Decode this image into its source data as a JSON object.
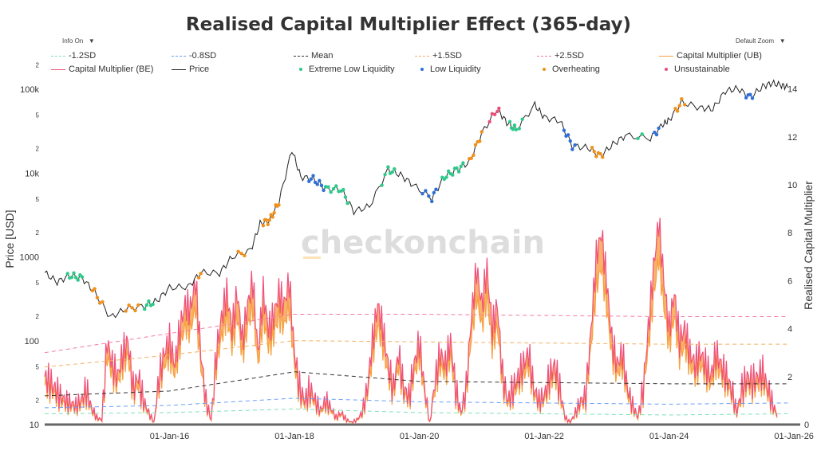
{
  "chart_data": {
    "type": "line",
    "title": "Realised Capital Multiplier Effect (365-day)",
    "controls": {
      "info": "Info On",
      "zoom": "Default Zoom",
      "caret": "▼"
    },
    "watermark": "checkonchain",
    "ylabel_left": "Price [USD]",
    "ylabel_right": "Realised Capital Multiplier",
    "left_axis": {
      "scale": "log",
      "range": [
        10,
        150000
      ],
      "ticks": [
        {
          "v": 10,
          "l": "10"
        },
        {
          "v": 20,
          "l": "2"
        },
        {
          "v": 50,
          "l": "5"
        },
        {
          "v": 100,
          "l": "100"
        },
        {
          "v": 200,
          "l": "2"
        },
        {
          "v": 500,
          "l": "5"
        },
        {
          "v": 1000,
          "l": "1000"
        },
        {
          "v": 2000,
          "l": "2"
        },
        {
          "v": 5000,
          "l": "5"
        },
        {
          "v": 10000,
          "l": "10k"
        },
        {
          "v": 20000,
          "l": "2"
        },
        {
          "v": 50000,
          "l": "5"
        },
        {
          "v": 100000,
          "l": "100k"
        },
        {
          "v": 200000,
          "l": "2"
        }
      ]
    },
    "right_axis": {
      "scale": "linear",
      "range": [
        0,
        15
      ],
      "ticks": [
        "0",
        "2",
        "4",
        "6",
        "8",
        "10",
        "12",
        "14"
      ]
    },
    "x_axis": {
      "range": [
        2014.0,
        2026.1
      ],
      "ticks": [
        {
          "v": 2016,
          "l": "01-Jan-16"
        },
        {
          "v": 2018,
          "l": "01-Jan-18"
        },
        {
          "v": 2020,
          "l": "01-Jan-20"
        },
        {
          "v": 2022,
          "l": "01-Jan-22"
        },
        {
          "v": 2024,
          "l": "01-Jan-24"
        },
        {
          "v": 2026,
          "l": "01-Jan-26"
        }
      ]
    },
    "grid": false,
    "legend_position": "top",
    "legend": [
      {
        "name": "-1.2SD",
        "kind": "dash",
        "color": "#7fe0b8"
      },
      {
        "name": "-0.8SD",
        "kind": "dash",
        "color": "#6a9ef5"
      },
      {
        "name": "Mean",
        "kind": "dash",
        "color": "#333333"
      },
      {
        "name": "+1.5SD",
        "kind": "dash",
        "color": "#f5b060"
      },
      {
        "name": "+2.5SD",
        "kind": "dash",
        "color": "#f57aa0"
      },
      {
        "name": "Capital Multiplier (UB)",
        "kind": "line",
        "color": "#f7a040"
      },
      {
        "name": "Capital Multiplier (BE)",
        "kind": "line",
        "color": "#f0507a"
      },
      {
        "name": "Price",
        "kind": "line",
        "color": "#222222"
      },
      {
        "name": "Extreme Low Liquidity",
        "kind": "dot",
        "color": "#2ec98a"
      },
      {
        "name": "Low Liquidity",
        "kind": "dot",
        "color": "#2f6fd6"
      },
      {
        "name": "Overheating",
        "kind": "dot",
        "color": "#f0901c"
      },
      {
        "name": "Unsustainable",
        "kind": "dot",
        "color": "#e8507a"
      }
    ],
    "price": [
      [
        2014.0,
        650
      ],
      [
        2014.2,
        500
      ],
      [
        2014.4,
        600
      ],
      [
        2014.6,
        560
      ],
      [
        2014.8,
        380
      ],
      [
        2015.05,
        190
      ],
      [
        2015.3,
        240
      ],
      [
        2015.6,
        260
      ],
      [
        2015.8,
        300
      ],
      [
        2016.0,
        430
      ],
      [
        2016.3,
        440
      ],
      [
        2016.5,
        650
      ],
      [
        2016.8,
        640
      ],
      [
        2017.0,
        1000
      ],
      [
        2017.3,
        1200
      ],
      [
        2017.45,
        2500
      ],
      [
        2017.6,
        2700
      ],
      [
        2017.75,
        4500
      ],
      [
        2017.96,
        19000
      ],
      [
        2018.1,
        9000
      ],
      [
        2018.3,
        8500
      ],
      [
        2018.5,
        6500
      ],
      [
        2018.75,
        6400
      ],
      [
        2018.95,
        3500
      ],
      [
        2019.2,
        4000
      ],
      [
        2019.5,
        11000
      ],
      [
        2019.7,
        9500
      ],
      [
        2019.9,
        7200
      ],
      [
        2020.2,
        5000
      ],
      [
        2020.4,
        9000
      ],
      [
        2020.6,
        11000
      ],
      [
        2020.8,
        13500
      ],
      [
        2021.0,
        30000
      ],
      [
        2021.25,
        58000
      ],
      [
        2021.4,
        40000
      ],
      [
        2021.55,
        33000
      ],
      [
        2021.85,
        65000
      ],
      [
        2022.0,
        46000
      ],
      [
        2022.25,
        42000
      ],
      [
        2022.45,
        21000
      ],
      [
        2022.7,
        20000
      ],
      [
        2022.9,
        16000
      ],
      [
        2023.1,
        22000
      ],
      [
        2023.3,
        28000
      ],
      [
        2023.7,
        26000
      ],
      [
        2023.9,
        38000
      ],
      [
        2024.0,
        43000
      ],
      [
        2024.2,
        70000
      ],
      [
        2024.5,
        60000
      ],
      [
        2024.7,
        58000
      ],
      [
        2024.9,
        95000
      ],
      [
        2025.1,
        102000
      ],
      [
        2025.3,
        80000
      ],
      [
        2025.5,
        108000
      ],
      [
        2025.65,
        118000
      ],
      [
        2025.8,
        112000
      ],
      [
        2025.9,
        105000
      ]
    ],
    "regimes": [
      {
        "type": "Extreme Low Liquidity",
        "from": 2014.35,
        "to": 2014.6
      },
      {
        "type": "Overheating",
        "from": 2014.75,
        "to": 2014.95
      },
      {
        "type": "Overheating",
        "from": 2015.3,
        "to": 2015.5
      },
      {
        "type": "Extreme Low Liquidity",
        "from": 2015.6,
        "to": 2015.75
      },
      {
        "type": "Overheating",
        "from": 2016.45,
        "to": 2016.55
      },
      {
        "type": "Overheating",
        "from": 2017.1,
        "to": 2017.2
      },
      {
        "type": "Overheating",
        "from": 2017.5,
        "to": 2017.75
      },
      {
        "type": "Low Liquidity",
        "from": 2018.2,
        "to": 2018.5
      },
      {
        "type": "Extreme Low Liquidity",
        "from": 2018.5,
        "to": 2018.85
      },
      {
        "type": "Extreme Low Liquidity",
        "from": 2019.4,
        "to": 2019.6
      },
      {
        "type": "Low Liquidity",
        "from": 2020.05,
        "to": 2020.3
      },
      {
        "type": "Extreme Low Liquidity",
        "from": 2020.35,
        "to": 2020.7
      },
      {
        "type": "Overheating",
        "from": 2020.8,
        "to": 2021.0
      },
      {
        "type": "Unsustainable",
        "from": 2021.1,
        "to": 2021.3
      },
      {
        "type": "Extreme Low Liquidity",
        "from": 2021.45,
        "to": 2021.65
      },
      {
        "type": "Low Liquidity",
        "from": 2022.3,
        "to": 2022.5
      },
      {
        "type": "Overheating",
        "from": 2022.75,
        "to": 2022.95
      },
      {
        "type": "Extreme Low Liquidity",
        "from": 2023.45,
        "to": 2023.6
      },
      {
        "type": "Low Liquidity",
        "from": 2023.75,
        "to": 2023.85
      },
      {
        "type": "Overheating",
        "from": 2024.1,
        "to": 2024.25
      },
      {
        "type": "Low Liquidity",
        "from": 2025.2,
        "to": 2025.35
      }
    ],
    "multiplier_be": [
      2.0,
      1.8,
      1.5,
      1.2,
      1.0,
      0.9,
      0.8,
      1.0,
      1.5,
      0.7,
      0.3,
      0.2,
      3.5,
      2.5,
      2.0,
      3.0,
      3.5,
      1.5,
      2.0,
      1.0,
      0.5,
      0.1,
      2.0,
      3.0,
      3.5,
      2.5,
      4.0,
      5.0,
      4.8,
      6.0,
      3.0,
      1.0,
      0.2,
      3.0,
      4.5,
      5.5,
      4.0,
      5.5,
      3.5,
      5.0,
      6.0,
      3.0,
      5.5,
      4.0,
      4.5,
      5.5,
      5.0,
      6.0,
      3.0,
      1.5,
      1.0,
      1.5,
      1.0,
      0.6,
      1.0,
      0.7,
      0.3,
      0.5,
      0.2,
      0.1,
      0.2,
      0.5,
      1.5,
      3.5,
      5.0,
      4.0,
      2.5,
      1.5,
      3.0,
      1.5,
      1.2,
      2.5,
      3.5,
      1.5,
      0.1,
      1.8,
      3.0,
      2.5,
      3.5,
      1.5,
      0.5,
      1.5,
      4.5,
      6.5,
      5.0,
      6.5,
      4.0,
      5.0,
      2.0,
      1.0,
      1.5,
      2.0,
      2.5,
      3.0,
      1.5,
      1.0,
      1.2,
      2.0,
      2.5,
      1.5,
      0.3,
      0.1,
      0.5,
      1.0,
      1.2,
      4.0,
      7.0,
      8.0,
      6.0,
      3.5,
      2.5,
      3.0,
      1.5,
      0.8,
      0.3,
      1.5,
      4.0,
      6.5,
      8.5,
      6.0,
      4.0,
      5.5,
      3.5,
      4.0,
      3.0,
      2.5,
      3.0,
      2.5,
      2.0,
      3.0,
      2.5,
      2.0,
      1.5,
      0.5,
      1.5,
      2.0,
      1.8,
      2.0,
      2.2,
      1.5,
      0.8,
      0.3
    ],
    "bands": {
      "x": [
        2014.0,
        2016.0,
        2018.0,
        2020.0,
        2022.0,
        2024.0,
        2025.9
      ],
      "plus_2_5sd": [
        3.0,
        3.8,
        4.6,
        4.6,
        4.55,
        4.5,
        4.5
      ],
      "plus_1_5sd": [
        2.4,
        2.9,
        3.5,
        3.45,
        3.4,
        3.35,
        3.35
      ],
      "mean": [
        1.2,
        1.4,
        2.2,
        1.8,
        1.75,
        1.7,
        1.7
      ],
      "minus_0_8sd": [
        0.7,
        0.8,
        1.1,
        0.95,
        0.9,
        0.85,
        0.9
      ],
      "minus_1_2sd": [
        0.45,
        0.5,
        0.65,
        0.5,
        0.45,
        0.4,
        0.45
      ]
    }
  }
}
